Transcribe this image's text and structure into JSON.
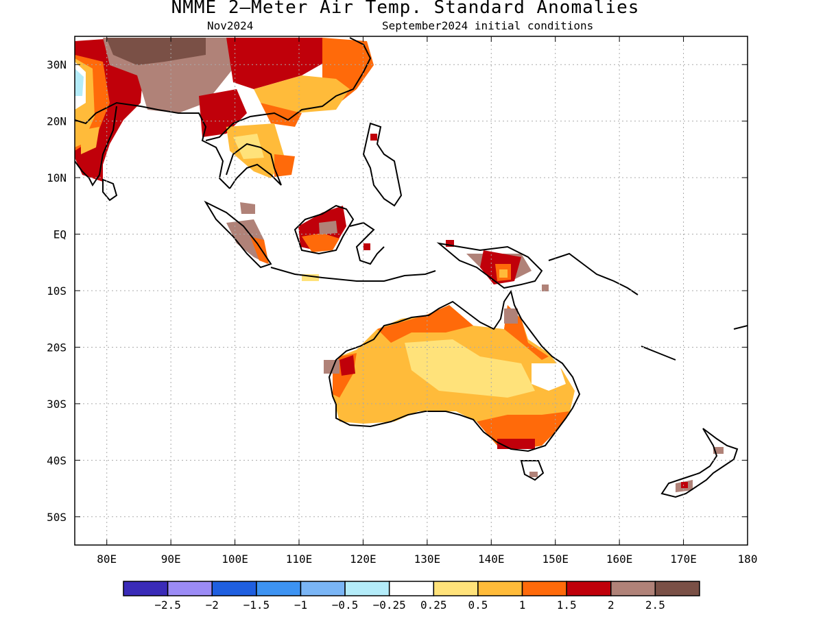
{
  "title": "NMME 2—Meter Air Temp. Standard Anomalies",
  "valid_month": "Nov2024",
  "initial_conditions": "September2024 initial conditions",
  "map": {
    "lon_range": [
      75,
      180
    ],
    "lat_range": [
      -55,
      35
    ],
    "lat_labels": [
      {
        "lat": 30,
        "text": "30N"
      },
      {
        "lat": 20,
        "text": "20N"
      },
      {
        "lat": 10,
        "text": "10N"
      },
      {
        "lat": 0,
        "text": "EQ"
      },
      {
        "lat": -10,
        "text": "10S"
      },
      {
        "lat": -20,
        "text": "20S"
      },
      {
        "lat": -30,
        "text": "30S"
      },
      {
        "lat": -40,
        "text": "40S"
      },
      {
        "lat": -50,
        "text": "50S"
      }
    ],
    "lon_labels": [
      {
        "lon": 80,
        "text": "80E"
      },
      {
        "lon": 90,
        "text": "90E"
      },
      {
        "lon": 100,
        "text": "100E"
      },
      {
        "lon": 110,
        "text": "110E"
      },
      {
        "lon": 120,
        "text": "120E"
      },
      {
        "lon": 130,
        "text": "130E"
      },
      {
        "lon": 140,
        "text": "140E"
      },
      {
        "lon": 150,
        "text": "150E"
      },
      {
        "lon": 160,
        "text": "160E"
      },
      {
        "lon": 170,
        "text": "170E"
      },
      {
        "lon": 180,
        "text": "180"
      }
    ],
    "grid": true
  },
  "colorbar": {
    "colors": [
      "#3a2bb8",
      "#9b8bf5",
      "#1f5fe0",
      "#3d93f2",
      "#7ab5f5",
      "#b4ecf9",
      "#ffffff",
      "#ffe27a",
      "#ffbb3a",
      "#ff6a0a",
      "#c0000a",
      "#b08278",
      "#7a5046"
    ],
    "labels": [
      "−2.5",
      "−2",
      "−1.5",
      "−1",
      "−0.5",
      "−0.25",
      "0.25",
      "0.5",
      "1",
      "1.5",
      "2",
      "2.5"
    ]
  }
}
